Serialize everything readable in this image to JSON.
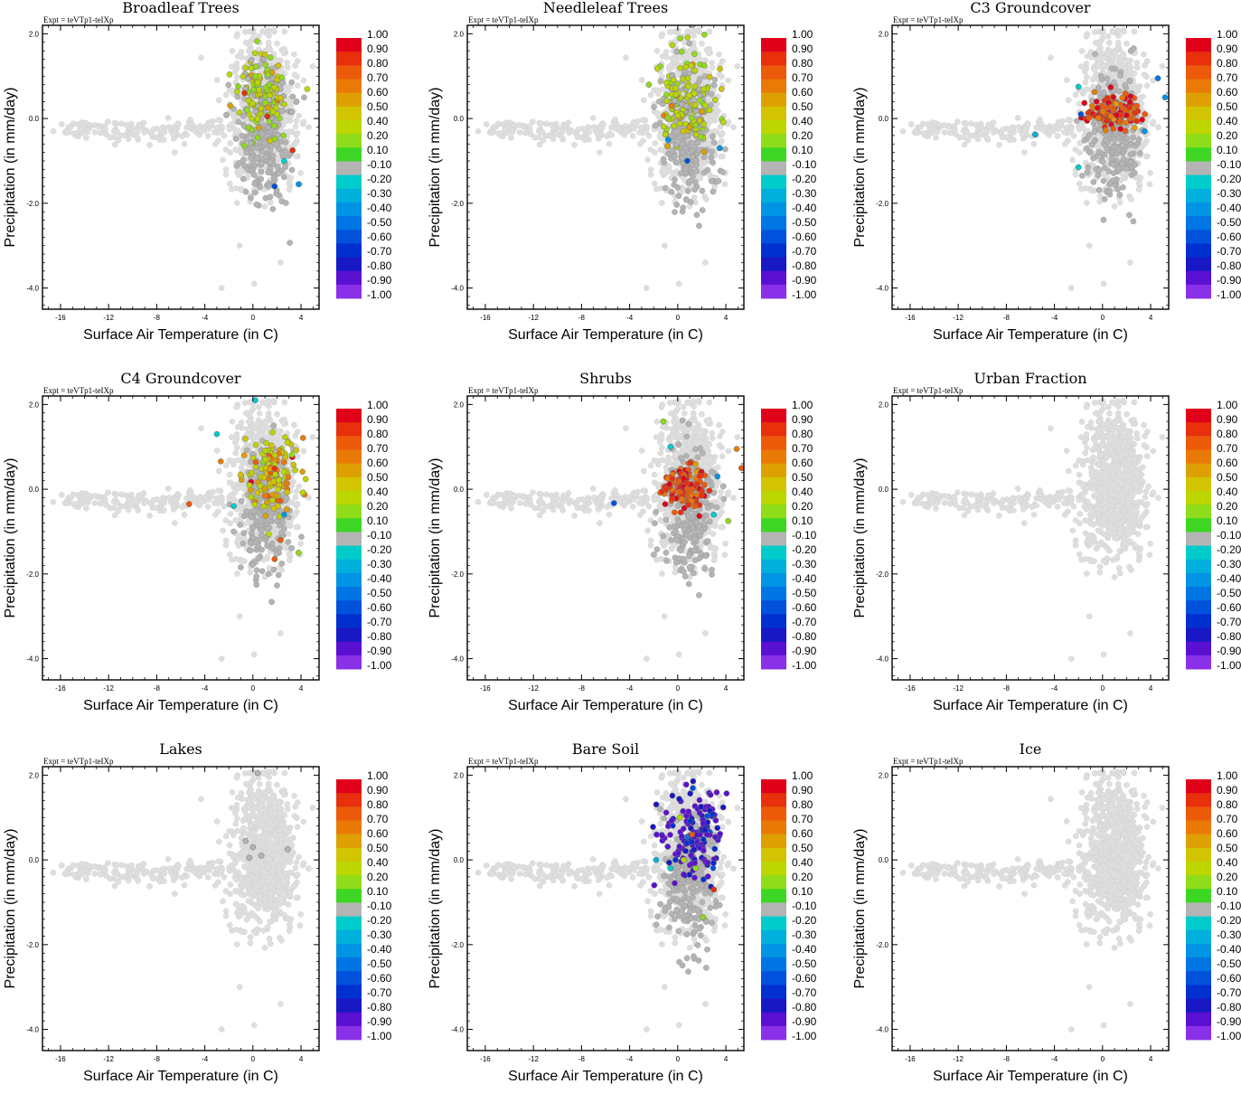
{
  "figure": {
    "experiment_label": "Expt = teVTp1-teIXp",
    "xlabel": "Surface Air Temperature (in C)",
    "ylabel": "Precipitation (in mm/day)",
    "x_ticks": [
      -16,
      -12,
      -8,
      -4,
      0,
      4
    ],
    "x_tick_labels": [
      "-16",
      "-12",
      "-8",
      "-4",
      "0",
      "4"
    ],
    "y_ticks": [
      2.0,
      0.0,
      -2.0,
      -4.0
    ],
    "y_tick_labels": [
      "2.0",
      "0.0",
      "-2.0",
      "-4.0"
    ],
    "colorbar_labels": [
      "1.00",
      "0.90",
      "0.80",
      "0.70",
      "0.60",
      "0.50",
      "0.40",
      "0.20",
      "0.10",
      "-0.10",
      "-0.20",
      "-0.30",
      "-0.40",
      "-0.50",
      "-0.60",
      "-0.70",
      "-0.80",
      "-0.90",
      "-1.00"
    ],
    "colorbar_colors": [
      "#e0001a",
      "#e8300c",
      "#ec5a0a",
      "#ea7a06",
      "#dea000",
      "#d2c400",
      "#bcd600",
      "#8fdc1a",
      "#3ed624",
      "#b4b4b4",
      "#00cccc",
      "#00b0dc",
      "#0094e4",
      "#0075e4",
      "#0052dc",
      "#0030d0",
      "#1818c4",
      "#5a10d0",
      "#8a30e8"
    ],
    "background_point_color": "#dedede",
    "neutral_point_color": "#b4b4b4"
  },
  "chart_data": [
    {
      "type": "scatter",
      "title": "Broadleaf Trees",
      "xlim": [
        -17.5,
        5.5
      ],
      "ylim": [
        -4.5,
        2.2
      ],
      "xlabel": "Surface Air Temperature (in C)",
      "ylabel": "Precipitation (in mm/day)",
      "colorbar_range": [
        -1.0,
        1.0
      ],
      "highlight_cluster": {
        "center_x": 0.8,
        "center_y": 0.5,
        "spread_x": 1.6,
        "spread_y": 0.8,
        "dominant_value": 0.2
      },
      "annotated_points": [
        {
          "x": -0.7,
          "y": 0.6,
          "value": 0.8
        },
        {
          "x": 1.2,
          "y": 0.05,
          "value": 0.8
        },
        {
          "x": 3.3,
          "y": -0.75,
          "value": 0.8
        },
        {
          "x": 2.6,
          "y": -1.0,
          "value": -0.3
        },
        {
          "x": 3.8,
          "y": -1.55,
          "value": -0.5
        },
        {
          "x": 1.8,
          "y": -1.6,
          "value": -0.7
        }
      ]
    },
    {
      "type": "scatter",
      "title": "Needleleaf Trees",
      "xlim": [
        -17.5,
        5.5
      ],
      "ylim": [
        -4.5,
        2.2
      ],
      "xlabel": "Surface Air Temperature (in C)",
      "ylabel": "Precipitation (in mm/day)",
      "colorbar_range": [
        -1.0,
        1.0
      ],
      "highlight_cluster": {
        "center_x": 0.8,
        "center_y": 0.4,
        "spread_x": 1.7,
        "spread_y": 0.8,
        "dominant_value": 0.2
      },
      "annotated_points": [
        {
          "x": -0.5,
          "y": 0.3,
          "value": 0.6
        },
        {
          "x": 1.0,
          "y": -0.2,
          "value": 0.5
        },
        {
          "x": -0.8,
          "y": -0.5,
          "value": -0.5
        },
        {
          "x": 3.5,
          "y": -0.7,
          "value": -0.5
        },
        {
          "x": 0.8,
          "y": -1.0,
          "value": -0.7
        },
        {
          "x": -2.4,
          "y": 0.8,
          "value": 0.1
        }
      ]
    },
    {
      "type": "scatter",
      "title": "C3 Groundcover",
      "xlim": [
        -17.5,
        5.5
      ],
      "ylim": [
        -4.5,
        2.2
      ],
      "xlabel": "Surface Air Temperature (in C)",
      "ylabel": "Precipitation (in mm/day)",
      "colorbar_range": [
        -1.0,
        1.0
      ],
      "highlight_cluster": {
        "center_x": 1.0,
        "center_y": 0.15,
        "spread_x": 1.8,
        "spread_y": 0.3,
        "dominant_value": 0.8
      },
      "annotated_points": [
        {
          "x": -5.6,
          "y": -0.38,
          "value": -0.4
        },
        {
          "x": -2.0,
          "y": -1.15,
          "value": -0.3
        },
        {
          "x": 4.6,
          "y": 0.95,
          "value": -0.6
        },
        {
          "x": 5.2,
          "y": 0.5,
          "value": -0.5
        },
        {
          "x": -2.0,
          "y": 0.75,
          "value": -0.3
        },
        {
          "x": -1.8,
          "y": 0.1,
          "value": -0.7
        },
        {
          "x": 3.5,
          "y": -0.3,
          "value": -0.5
        }
      ]
    },
    {
      "type": "scatter",
      "title": "C4 Groundcover",
      "xlim": [
        -17.5,
        5.5
      ],
      "ylim": [
        -4.5,
        2.2
      ],
      "xlabel": "Surface Air Temperature (in C)",
      "ylabel": "Precipitation (in mm/day)",
      "colorbar_range": [
        -1.0,
        1.0
      ],
      "highlight_cluster": {
        "center_x": 1.5,
        "center_y": 0.4,
        "spread_x": 1.6,
        "spread_y": 0.6,
        "dominant_value": 0.4
      },
      "annotated_points": [
        {
          "x": -5.3,
          "y": -0.35,
          "value": 0.7
        },
        {
          "x": 1.8,
          "y": -1.65,
          "value": 0.7
        },
        {
          "x": 2.3,
          "y": -1.2,
          "value": 0.7
        },
        {
          "x": -3.0,
          "y": 1.3,
          "value": -0.3
        },
        {
          "x": 0.2,
          "y": 2.1,
          "value": -0.3
        },
        {
          "x": -1.6,
          "y": -0.4,
          "value": -0.3
        },
        {
          "x": 2.6,
          "y": -0.6,
          "value": -0.5
        },
        {
          "x": 3.8,
          "y": -1.5,
          "value": 0.1
        }
      ]
    },
    {
      "type": "scatter",
      "title": "Shrubs",
      "xlim": [
        -17.5,
        5.5
      ],
      "ylim": [
        -4.5,
        2.2
      ],
      "xlabel": "Surface Air Temperature (in C)",
      "ylabel": "Precipitation (in mm/day)",
      "colorbar_range": [
        -1.0,
        1.0
      ],
      "highlight_cluster": {
        "center_x": 0.8,
        "center_y": 0.05,
        "spread_x": 1.4,
        "spread_y": 0.35,
        "dominant_value": 0.8
      },
      "annotated_points": [
        {
          "x": -5.3,
          "y": -0.33,
          "value": -0.7
        },
        {
          "x": -1.2,
          "y": 1.6,
          "value": 0.1
        },
        {
          "x": 4.9,
          "y": 0.95,
          "value": 0.6
        },
        {
          "x": 5.3,
          "y": 0.5,
          "value": 0.7
        },
        {
          "x": 3.3,
          "y": 0.3,
          "value": -0.5
        },
        {
          "x": -0.6,
          "y": 1.0,
          "value": -0.3
        },
        {
          "x": 3.0,
          "y": -0.6,
          "value": -0.3
        },
        {
          "x": 4.2,
          "y": -0.75,
          "value": 0.1
        }
      ]
    },
    {
      "type": "scatter",
      "title": "Urban Fraction",
      "xlim": [
        -17.5,
        5.5
      ],
      "ylim": [
        -4.5,
        2.2
      ],
      "xlabel": "Surface Air Temperature (in C)",
      "ylabel": "Precipitation (in mm/day)",
      "colorbar_range": [
        -1.0,
        1.0
      ],
      "highlight_cluster": null,
      "annotated_points": []
    },
    {
      "type": "scatter",
      "title": "Lakes",
      "xlim": [
        -17.5,
        5.5
      ],
      "ylim": [
        -4.5,
        2.2
      ],
      "xlabel": "Surface Air Temperature (in C)",
      "ylabel": "Precipitation (in mm/day)",
      "colorbar_range": [
        -1.0,
        1.0
      ],
      "highlight_cluster": null,
      "annotated_points": [
        {
          "x": 0.0,
          "y": 0.3,
          "value": 0.0
        },
        {
          "x": -0.6,
          "y": 0.45,
          "value": 0.0
        },
        {
          "x": 0.7,
          "y": 0.1,
          "value": 0.0
        },
        {
          "x": 2.9,
          "y": 0.25,
          "value": 0.0
        },
        {
          "x": 0.4,
          "y": 2.05,
          "value": 0.0
        },
        {
          "x": -0.3,
          "y": 0.05,
          "value": 0.0
        }
      ]
    },
    {
      "type": "scatter",
      "title": "Bare Soil",
      "xlim": [
        -17.5,
        5.5
      ],
      "ylim": [
        -4.5,
        2.2
      ],
      "xlabel": "Surface Air Temperature (in C)",
      "ylabel": "Precipitation (in mm/day)",
      "colorbar_range": [
        -1.0,
        1.0
      ],
      "highlight_cluster": {
        "center_x": 1.5,
        "center_y": 0.6,
        "spread_x": 1.8,
        "spread_y": 0.8,
        "dominant_value": -0.9
      },
      "annotated_points": [
        {
          "x": 0.5,
          "y": 0.0,
          "value": 0.2
        },
        {
          "x": 1.5,
          "y": -0.2,
          "value": 0.1
        },
        {
          "x": 1.2,
          "y": 0.6,
          "value": 0.7
        },
        {
          "x": 3.0,
          "y": -0.7,
          "value": 0.8
        },
        {
          "x": 2.1,
          "y": -1.35,
          "value": 0.1
        },
        {
          "x": -1.8,
          "y": 0.0,
          "value": -0.4
        },
        {
          "x": 0.2,
          "y": 1.0,
          "value": 0.3
        },
        {
          "x": -0.6,
          "y": -0.2,
          "value": -0.3
        }
      ]
    },
    {
      "type": "scatter",
      "title": "Ice",
      "xlim": [
        -17.5,
        5.5
      ],
      "ylim": [
        -4.5,
        2.2
      ],
      "xlabel": "Surface Air Temperature (in C)",
      "ylabel": "Precipitation (in mm/day)",
      "colorbar_range": [
        -1.0,
        1.0
      ],
      "highlight_cluster": null,
      "annotated_points": []
    }
  ]
}
